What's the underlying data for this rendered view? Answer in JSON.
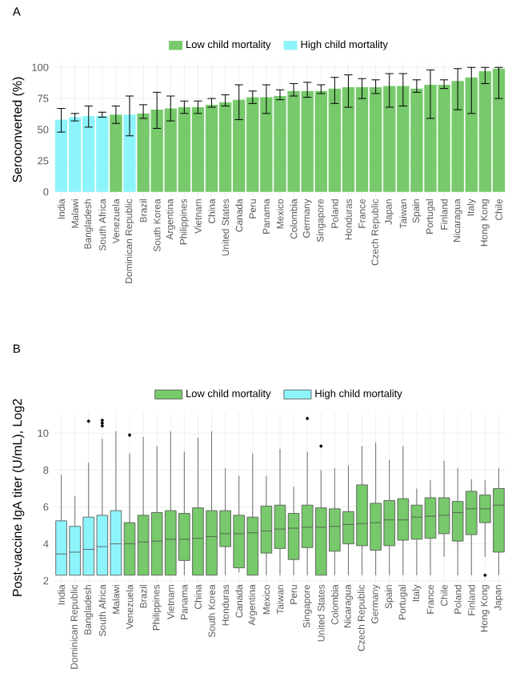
{
  "chart_data": [
    {
      "type": "bar",
      "title": "A",
      "ylabel": "Seroconverted (%)",
      "categories": [
        "India",
        "Malawi",
        "Bangladesh",
        "South Africa",
        "Venezuela",
        "Dominican Republic",
        "Brazil",
        "South Korea",
        "Argentina",
        "Philippines",
        "Vietnam",
        "China",
        "United States",
        "Canada",
        "Peru",
        "Panama",
        "Mexico",
        "Colombia",
        "Germany",
        "Singapore",
        "Poland",
        "Honduras",
        "France",
        "Czech Republic",
        "Japan",
        "Taiwan",
        "Spain",
        "Portugal",
        "Finland",
        "Nicaragua",
        "Italy",
        "Hong Kong",
        "Chile"
      ],
      "series": [
        {
          "name": "Low child mortality",
          "color": "#77c96b",
          "values": [
            null,
            null,
            null,
            null,
            62,
            null,
            63,
            66,
            67,
            68,
            68,
            70,
            72,
            74,
            76,
            76,
            77,
            81,
            81,
            81,
            83,
            84,
            84,
            84,
            85,
            85,
            83,
            86,
            86,
            89,
            92,
            97,
            99
          ],
          "errors": [
            null,
            null,
            null,
            null,
            [
              55,
              69
            ],
            null,
            [
              59,
              70
            ],
            [
              51,
              80
            ],
            [
              57,
              77
            ],
            [
              63,
              73
            ],
            [
              63,
              73
            ],
            [
              68,
              75
            ],
            [
              69,
              78
            ],
            [
              58,
              86
            ],
            [
              71,
              81
            ],
            [
              63,
              86
            ],
            [
              74,
              82
            ],
            [
              77,
              87
            ],
            [
              76,
              88
            ],
            [
              79,
              86
            ],
            [
              71,
              92
            ],
            [
              68,
              94
            ],
            [
              75,
              91
            ],
            [
              79,
              90
            ],
            [
              68,
              95
            ],
            [
              69,
              95
            ],
            [
              80,
              90
            ],
            [
              59,
              98
            ],
            [
              83,
              90
            ],
            [
              66,
              99
            ],
            [
              63,
              100
            ],
            [
              87,
              100
            ],
            [
              75,
              100
            ]
          ]
        },
        {
          "name": "High child mortality",
          "color": "#8ef4fb",
          "values": [
            58,
            60,
            61,
            61,
            null,
            62,
            null,
            null,
            null,
            null,
            null,
            null,
            null,
            null,
            null,
            null,
            null,
            null,
            null,
            null,
            null,
            null,
            null,
            null,
            null,
            null,
            null,
            null,
            null,
            null,
            null,
            null,
            null
          ],
          "errors": [
            [
              48,
              67
            ],
            [
              57,
              63
            ],
            [
              52,
              69
            ],
            [
              60,
              64
            ],
            null,
            [
              45,
              77
            ],
            null,
            null,
            null,
            null,
            null,
            null,
            null,
            null,
            null,
            null,
            null,
            null,
            null,
            null,
            null,
            null,
            null,
            null,
            null,
            null,
            null,
            null,
            null,
            null,
            null,
            null,
            null
          ]
        }
      ],
      "ylim": [
        -4,
        104
      ],
      "yticks": [
        0,
        25,
        50,
        75,
        100
      ],
      "grid": true,
      "legend": "top"
    },
    {
      "type": "box",
      "title": "B",
      "ylabel": "Post-vaccine IgA titer (U/mL), Log2",
      "categories": [
        "India",
        "Dominican Republic",
        "Bangladesh",
        "South Africa",
        "Malawi",
        "Venezuela",
        "Brazil",
        "Philippines",
        "Vietnam",
        "Panama",
        "China",
        "South Korea",
        "Honduras",
        "Canada",
        "Argentina",
        "Mexico",
        "Taiwan",
        "Peru",
        "Singapore",
        "United States",
        "Colombia",
        "Nicaragua",
        "Czech Republic",
        "Germany",
        "Spain",
        "Portugal",
        "Italy",
        "France",
        "Chile",
        "Poland",
        "Finland",
        "Hong Kong",
        "Japan"
      ],
      "series": [
        {
          "name": "Low child mortality",
          "color": "#77c96b",
          "boxes": [
            null,
            null,
            null,
            null,
            null,
            {
              "low": 2.3,
              "q1": 2.3,
              "median": 4.0,
              "q3": 5.15,
              "high": 8.9,
              "outliers": [
                9.9
              ]
            },
            {
              "low": 2.3,
              "q1": 2.3,
              "median": 4.1,
              "q3": 5.55,
              "high": 9.8
            },
            {
              "low": 2.3,
              "q1": 2.3,
              "median": 4.15,
              "q3": 5.7,
              "high": 9.3
            },
            {
              "low": 2.3,
              "q1": 2.3,
              "median": 4.25,
              "q3": 5.8,
              "high": 10.1
            },
            {
              "low": 2.3,
              "q1": 3.1,
              "median": 4.25,
              "q3": 5.65,
              "high": 9.0
            },
            {
              "low": 2.3,
              "q1": 2.3,
              "median": 4.3,
              "q3": 5.95,
              "high": 9.75
            },
            {
              "low": 2.3,
              "q1": 2.3,
              "median": 4.4,
              "q3": 5.8,
              "high": 10.1
            },
            {
              "low": 2.3,
              "q1": 3.85,
              "median": 4.55,
              "q3": 5.8,
              "high": 8.1
            },
            {
              "low": 2.45,
              "q1": 2.7,
              "median": 4.55,
              "q3": 5.55,
              "high": 7.7
            },
            {
              "low": 2.3,
              "q1": 2.3,
              "median": 4.6,
              "q3": 5.45,
              "high": 8.9
            },
            {
              "low": 2.3,
              "q1": 3.5,
              "median": 4.7,
              "q3": 6.05,
              "high": 7.7
            },
            {
              "low": 2.3,
              "q1": 3.75,
              "median": 4.8,
              "q3": 6.1,
              "high": 9.15
            },
            {
              "low": 2.3,
              "q1": 3.15,
              "median": 4.85,
              "q3": 5.65,
              "high": 7.1
            },
            {
              "low": 2.3,
              "q1": 3.8,
              "median": 4.9,
              "q3": 6.1,
              "high": 9.0,
              "outliers": [
                10.8
              ]
            },
            {
              "low": 2.3,
              "q1": 2.3,
              "median": 4.9,
              "q3": 5.95,
              "high": 8.0,
              "outliers": [
                9.3
              ]
            },
            {
              "low": 2.3,
              "q1": 3.6,
              "median": 4.95,
              "q3": 5.9,
              "high": 8.1
            },
            {
              "low": 2.3,
              "q1": 4.0,
              "median": 5.05,
              "q3": 5.75,
              "high": 8.25
            },
            {
              "low": 2.3,
              "q1": 3.9,
              "median": 5.1,
              "q3": 7.2,
              "high": 9.3
            },
            {
              "low": 2.3,
              "q1": 3.65,
              "median": 5.15,
              "q3": 6.2,
              "high": 9.5
            },
            {
              "low": 2.3,
              "q1": 3.9,
              "median": 5.3,
              "q3": 6.35,
              "high": 8.55
            },
            {
              "low": 2.3,
              "q1": 4.2,
              "median": 5.3,
              "q3": 6.45,
              "high": 9.3
            },
            {
              "low": 2.3,
              "q1": 4.25,
              "median": 5.45,
              "q3": 6.1,
              "high": 7.0
            },
            {
              "low": 2.3,
              "q1": 4.3,
              "median": 5.5,
              "q3": 6.5,
              "high": 7.45
            },
            {
              "low": 3.3,
              "q1": 4.55,
              "median": 5.55,
              "q3": 6.5,
              "high": 8.5
            },
            {
              "low": 2.3,
              "q1": 4.15,
              "median": 5.7,
              "q3": 6.3,
              "high": 8.1
            },
            {
              "low": 2.3,
              "q1": 4.5,
              "median": 5.9,
              "q3": 6.85,
              "high": 7.5
            },
            {
              "low": 3.3,
              "q1": 5.15,
              "median": 5.9,
              "q3": 6.65,
              "high": 7.45,
              "outliers": [
                2.3
              ]
            },
            {
              "low": 2.3,
              "q1": 3.55,
              "median": 6.1,
              "q3": 7.0,
              "high": 8.1
            }
          ]
        },
        {
          "name": "High child mortality",
          "color": "#8ef4fb",
          "boxes": [
            {
              "low": 2.3,
              "q1": 2.3,
              "median": 3.45,
              "q3": 5.25,
              "high": 7.75
            },
            {
              "low": 2.3,
              "q1": 2.3,
              "median": 3.55,
              "q3": 4.95,
              "high": 6.6
            },
            {
              "low": 2.3,
              "q1": 2.3,
              "median": 3.7,
              "q3": 5.45,
              "high": 8.4,
              "outliers": [
                10.65
              ]
            },
            {
              "low": 2.3,
              "q1": 2.3,
              "median": 3.85,
              "q3": 5.55,
              "high": 9.7,
              "outliers": [
                10.4,
                10.55,
                10.7
              ]
            },
            {
              "low": 2.3,
              "q1": 2.3,
              "median": 4.0,
              "q3": 5.8,
              "high": 10.1
            },
            null,
            null,
            null,
            null,
            null,
            null,
            null,
            null,
            null,
            null,
            null,
            null,
            null,
            null,
            null,
            null,
            null,
            null,
            null,
            null,
            null,
            null,
            null,
            null,
            null,
            null,
            null,
            null
          ]
        }
      ],
      "ylim": [
        1.9,
        11.1
      ],
      "yticks": [
        2,
        4,
        6,
        8,
        10
      ],
      "grid": true,
      "legend": "top"
    }
  ]
}
